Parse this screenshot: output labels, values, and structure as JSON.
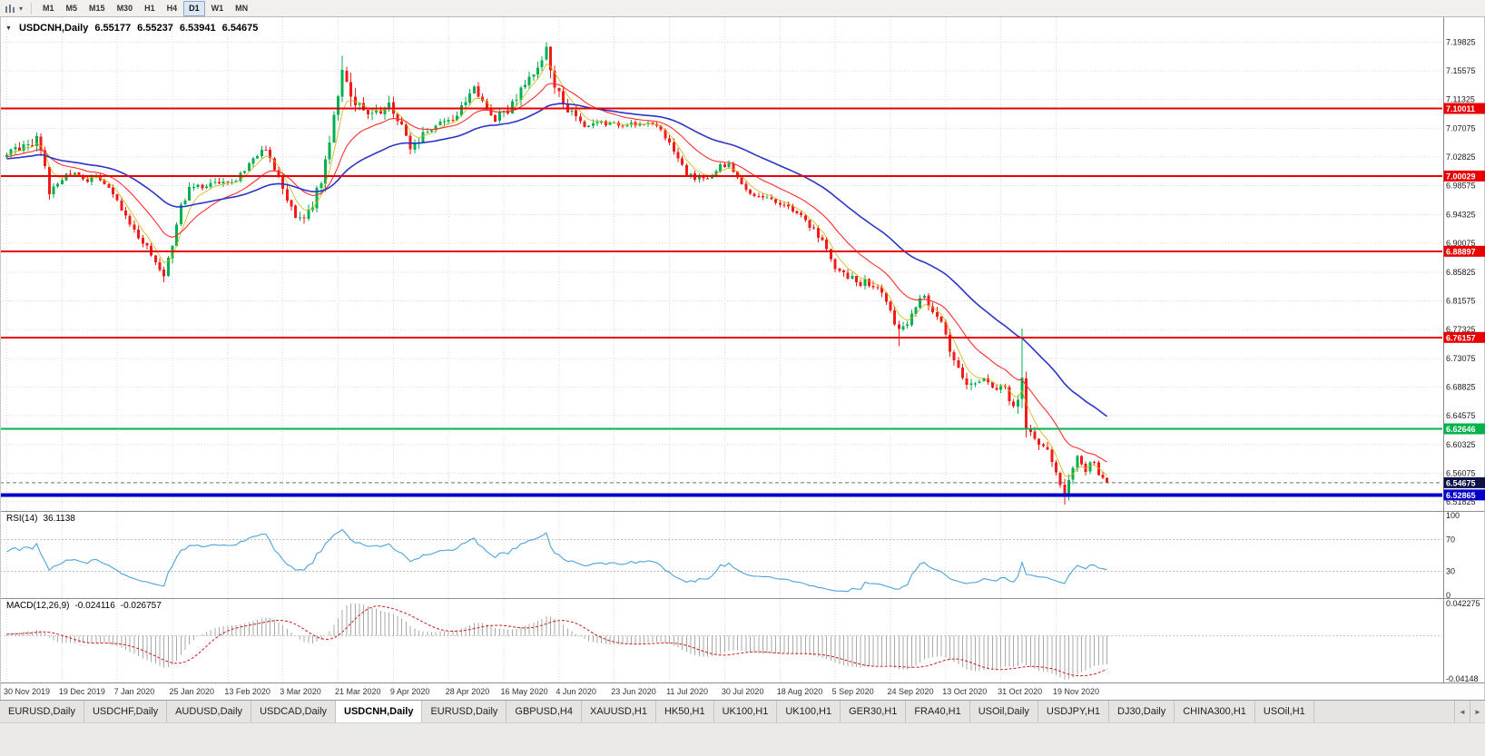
{
  "toolbar": {
    "chart_type_icon": "bar-chart-icon",
    "dropdown_icon": "caret-down",
    "timeframes": [
      "M1",
      "M5",
      "M15",
      "M30",
      "H1",
      "H4",
      "D1",
      "W1",
      "MN"
    ],
    "active_timeframe": "D1"
  },
  "chart": {
    "symbol_title": "USDCNH,Daily",
    "ohlc": {
      "open": "6.55177",
      "high": "6.55237",
      "low": "6.53941",
      "close": "6.54675"
    },
    "price_axis_ticks": [
      "7.19825",
      "7.15575",
      "7.11325",
      "7.07075",
      "7.02825",
      "6.98575",
      "6.94325",
      "6.90075",
      "6.85825",
      "6.81575",
      "6.77325",
      "6.73075",
      "6.68825",
      "6.64575",
      "6.60325",
      "6.56075",
      "6.51825"
    ],
    "price_range": {
      "top": 7.235,
      "bottom": 6.505
    },
    "levels": [
      {
        "price": 7.10011,
        "label": "7.10011",
        "color": "#e80000",
        "line_width": 2
      },
      {
        "price": 7.00029,
        "label": "7.00029",
        "color": "#e80000",
        "line_width": 2
      },
      {
        "price": 6.88897,
        "label": "6.88897",
        "color": "#e80000",
        "line_width": 2
      },
      {
        "price": 6.76157,
        "label": "6.76157",
        "color": "#e80000",
        "line_width": 2
      },
      {
        "price": 6.62646,
        "label": "6.62646",
        "color": "#00b24c",
        "line_width": 2
      },
      {
        "price": 6.52865,
        "label": "6.52865",
        "color": "#0000c8",
        "line_width": 4
      }
    ],
    "current_price": {
      "price": 6.54675,
      "label": "6.54675",
      "tag_color": "#0c1045"
    },
    "colors": {
      "up": "#00b050",
      "down": "#f31a1a",
      "ma_fast": "#ff2e2e",
      "ma_slow": "#2a35c8",
      "ma_short": "#cdb40c",
      "grid": "#dadada"
    }
  },
  "indicators": {
    "rsi": {
      "name": "RSI(14)",
      "value": "36.1138",
      "period": 14,
      "levels": [
        100,
        70,
        30,
        0
      ],
      "line_color": "#4aa3db"
    },
    "macd": {
      "name": "MACD(12,26,9)",
      "value_main": "-0.024116",
      "value_signal": "-0.026757",
      "axis_max": "0.042275",
      "axis_min": "-0.04148",
      "hist_color": "#a8a8a8",
      "signal_color": "#d01818"
    }
  },
  "date_axis": [
    "30 Nov 2019",
    "19 Dec 2019",
    "7 Jan 2020",
    "25 Jan 2020",
    "13 Feb 2020",
    "3 Mar 2020",
    "21 Mar 2020",
    "9 Apr 2020",
    "28 Apr 2020",
    "16 May 2020",
    "4 Jun 2020",
    "23 Jun 2020",
    "11 Jul 2020",
    "30 Jul 2020",
    "18 Aug 2020",
    "5 Sep 2020",
    "24 Sep 2020",
    "13 Oct 2020",
    "31 Oct 2020",
    "19 Nov 2020"
  ],
  "tabs": {
    "items": [
      "EURUSD,Daily",
      "USDCHF,Daily",
      "AUDUSD,Daily",
      "USDCAD,Daily",
      "USDCNH,Daily",
      "EURUSD,Daily",
      "GBPUSD,H4",
      "XAUUSD,H1",
      "HK50,H1",
      "UK100,H1",
      "UK100,H1",
      "GER30,H1",
      "FRA40,H1",
      "USOil,Daily",
      "USDJPY,H1",
      "DJ30,Daily",
      "CHINA300,H1",
      "USOil,H1"
    ],
    "active": "USDCNH,Daily",
    "active_index": 4,
    "scroll_left_icon": "◄",
    "scroll_right_icon": "►"
  },
  "chart_data": {
    "type": "candlestick",
    "symbol": "USDCNH",
    "timeframe": "D1",
    "bars": 260,
    "bars_per_label": 13,
    "last_close": 6.54675,
    "visible_high": 7.198,
    "visible_low": 6.514,
    "close_anchors": [
      [
        0,
        7.032
      ],
      [
        4,
        7.048
      ],
      [
        7,
        7.052
      ],
      [
        9,
        7.012
      ],
      [
        10,
        6.976
      ],
      [
        12,
        6.988
      ],
      [
        15,
        7.008
      ],
      [
        18,
        6.992
      ],
      [
        21,
        6.998
      ],
      [
        25,
        6.972
      ],
      [
        28,
        6.945
      ],
      [
        30,
        6.919
      ],
      [
        33,
        6.895
      ],
      [
        35,
        6.866
      ],
      [
        37,
        6.847
      ],
      [
        39,
        6.9
      ],
      [
        41,
        6.96
      ],
      [
        44,
        6.99
      ],
      [
        47,
        6.985
      ],
      [
        50,
        6.988
      ],
      [
        53,
        6.992
      ],
      [
        56,
        7.005
      ],
      [
        59,
        7.032
      ],
      [
        61,
        7.04
      ],
      [
        63,
        7.005
      ],
      [
        65,
        6.982
      ],
      [
        67,
        6.95
      ],
      [
        69,
        6.935
      ],
      [
        71,
        6.945
      ],
      [
        73,
        6.975
      ],
      [
        75,
        7.018
      ],
      [
        77,
        7.08
      ],
      [
        79,
        7.158
      ],
      [
        81,
        7.122
      ],
      [
        83,
        7.105
      ],
      [
        85,
        7.091
      ],
      [
        88,
        7.098
      ],
      [
        90,
        7.103
      ],
      [
        93,
        7.072
      ],
      [
        95,
        7.045
      ],
      [
        98,
        7.06
      ],
      [
        100,
        7.074
      ],
      [
        103,
        7.082
      ],
      [
        105,
        7.087
      ],
      [
        108,
        7.11
      ],
      [
        110,
        7.133
      ],
      [
        112,
        7.105
      ],
      [
        115,
        7.083
      ],
      [
        118,
        7.1
      ],
      [
        120,
        7.117
      ],
      [
        122,
        7.135
      ],
      [
        124,
        7.152
      ],
      [
        127,
        7.19
      ],
      [
        129,
        7.14
      ],
      [
        131,
        7.105
      ],
      [
        134,
        7.085
      ],
      [
        136,
        7.078
      ],
      [
        139,
        7.082
      ],
      [
        142,
        7.076
      ],
      [
        145,
        7.075
      ],
      [
        148,
        7.077
      ],
      [
        151,
        7.078
      ],
      [
        154,
        7.07
      ],
      [
        157,
        7.04
      ],
      [
        160,
        7.0
      ],
      [
        163,
        6.998
      ],
      [
        165,
        7.0
      ],
      [
        168,
        7.015
      ],
      [
        170,
        7.018
      ],
      [
        172,
        6.995
      ],
      [
        175,
        6.975
      ],
      [
        178,
        6.97
      ],
      [
        180,
        6.967
      ],
      [
        183,
        6.958
      ],
      [
        185,
        6.95
      ],
      [
        188,
        6.935
      ],
      [
        190,
        6.92
      ],
      [
        193,
        6.895
      ],
      [
        195,
        6.865
      ],
      [
        198,
        6.852
      ],
      [
        200,
        6.845
      ],
      [
        203,
        6.84
      ],
      [
        205,
        6.838
      ],
      [
        208,
        6.8
      ],
      [
        210,
        6.769
      ],
      [
        212,
        6.785
      ],
      [
        215,
        6.823
      ],
      [
        217,
        6.81
      ],
      [
        220,
        6.791
      ],
      [
        222,
        6.74
      ],
      [
        225,
        6.695
      ],
      [
        228,
        6.69
      ],
      [
        230,
        6.698
      ],
      [
        232,
        6.692
      ],
      [
        235,
        6.685
      ],
      [
        237,
        6.665
      ],
      [
        239,
        6.688
      ],
      [
        240,
        6.625
      ],
      [
        242,
        6.605
      ],
      [
        244,
        6.607
      ],
      [
        246,
        6.583
      ],
      [
        248,
        6.545
      ],
      [
        249,
        6.525
      ],
      [
        250,
        6.558
      ],
      [
        251,
        6.575
      ],
      [
        252,
        6.582
      ],
      [
        253,
        6.572
      ],
      [
        254,
        6.566
      ],
      [
        255,
        6.58
      ],
      [
        256,
        6.574
      ],
      [
        257,
        6.558
      ],
      [
        258,
        6.55
      ],
      [
        259,
        6.54675
      ]
    ],
    "volatility_anchors": [
      [
        0,
        0.012
      ],
      [
        8,
        0.02
      ],
      [
        12,
        0.012
      ],
      [
        25,
        0.011
      ],
      [
        30,
        0.012
      ],
      [
        36,
        0.016
      ],
      [
        40,
        0.018
      ],
      [
        45,
        0.012
      ],
      [
        52,
        0.01
      ],
      [
        60,
        0.012
      ],
      [
        66,
        0.016
      ],
      [
        72,
        0.018
      ],
      [
        76,
        0.026
      ],
      [
        80,
        0.03
      ],
      [
        84,
        0.022
      ],
      [
        90,
        0.018
      ],
      [
        96,
        0.015
      ],
      [
        105,
        0.014
      ],
      [
        112,
        0.016
      ],
      [
        120,
        0.016
      ],
      [
        125,
        0.02
      ],
      [
        128,
        0.022
      ],
      [
        132,
        0.016
      ],
      [
        140,
        0.009
      ],
      [
        150,
        0.007
      ],
      [
        157,
        0.012
      ],
      [
        162,
        0.01
      ],
      [
        170,
        0.01
      ],
      [
        180,
        0.009
      ],
      [
        190,
        0.012
      ],
      [
        200,
        0.012
      ],
      [
        208,
        0.016
      ],
      [
        214,
        0.015
      ],
      [
        221,
        0.014
      ],
      [
        224,
        0.018
      ],
      [
        232,
        0.011
      ],
      [
        238,
        0.02
      ],
      [
        239,
        0.034
      ],
      [
        241,
        0.018
      ],
      [
        245,
        0.014
      ],
      [
        249,
        0.02
      ],
      [
        252,
        0.012
      ],
      [
        256,
        0.009
      ],
      [
        259,
        0.009
      ]
    ],
    "wick_events": [
      {
        "bar": 37,
        "low": 6.843
      },
      {
        "bar": 79,
        "high": 7.178
      },
      {
        "bar": 127,
        "high": 7.198
      },
      {
        "bar": 210,
        "low": 6.7485
      },
      {
        "bar": 239,
        "high": 6.775
      },
      {
        "bar": 249,
        "low": 6.5145
      }
    ],
    "noise_seed": 31,
    "overlays": [
      {
        "type": "ema",
        "period": 5,
        "color": "#cdb40c"
      },
      {
        "type": "ema",
        "period": 16,
        "color": "#ff2e2e"
      },
      {
        "type": "ema",
        "period": 42,
        "color": "#2a35c8"
      }
    ]
  }
}
